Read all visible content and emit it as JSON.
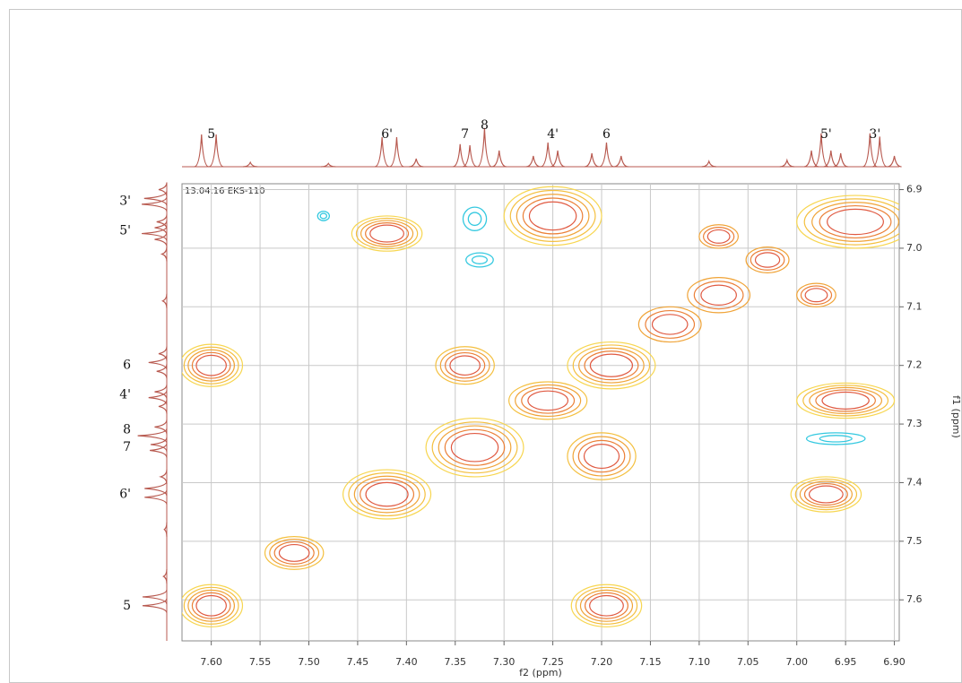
{
  "chart_data": {
    "type": "nmr2d",
    "title": "13.04.16 EKS-110",
    "xlabel": "f2 (ppm)",
    "ylabel": "f1 (ppm)",
    "xlim": [
      7.63,
      6.895
    ],
    "ylim": [
      6.89,
      7.67
    ],
    "xticks": [
      {
        "value": 7.6,
        "label": "7.60"
      },
      7.55,
      {
        "value": 7.5,
        "label": "7.50"
      },
      7.45,
      {
        "value": 7.4,
        "label": "7.40"
      },
      7.35,
      {
        "value": 7.3,
        "label": "7.30"
      },
      7.25,
      {
        "value": 7.2,
        "label": "7.20"
      },
      7.15,
      {
        "value": 7.1,
        "label": "7.10"
      },
      7.05,
      {
        "value": 7,
        "label": "7.00"
      },
      6.95,
      {
        "value": 6.9,
        "label": "6.90"
      }
    ],
    "yticks": [
      6.9,
      {
        "value": 7,
        "label": "7.0"
      },
      7.1,
      7.2,
      7.3,
      7.4,
      7.5,
      7.6
    ],
    "grid": true,
    "grid_color": "#c9c9c9",
    "level_colors": [
      "#f7d650",
      "#f4c040",
      "#f0a438",
      "#eb8038",
      "#e05a42"
    ],
    "negative_color": "#35c9e0",
    "trace_color": "#b85a50",
    "peaks": [
      {
        "x": 7.6,
        "y": 7.61,
        "w": 0.032,
        "h": 0.036,
        "levels": 5
      },
      {
        "x": 7.6,
        "y": 7.2,
        "w": 0.032,
        "h": 0.036,
        "levels": 5
      },
      {
        "x": 7.42,
        "y": 6.975,
        "w": 0.036,
        "h": 0.03,
        "levels": 5
      },
      {
        "x": 7.42,
        "y": 7.42,
        "w": 0.045,
        "h": 0.042,
        "levels": 5
      },
      {
        "x": 7.515,
        "y": 7.52,
        "w": 0.03,
        "h": 0.028,
        "levels": 4
      },
      {
        "x": 7.34,
        "y": 7.2,
        "w": 0.03,
        "h": 0.032,
        "levels": 4
      },
      {
        "x": 7.33,
        "y": 7.34,
        "w": 0.05,
        "h": 0.05,
        "levels": 5
      },
      {
        "x": 7.25,
        "y": 6.945,
        "w": 0.05,
        "h": 0.05,
        "levels": 5
      },
      {
        "x": 7.255,
        "y": 7.26,
        "w": 0.04,
        "h": 0.032,
        "levels": 4
      },
      {
        "x": 7.19,
        "y": 7.2,
        "w": 0.045,
        "h": 0.04,
        "levels": 5
      },
      {
        "x": 7.195,
        "y": 7.61,
        "w": 0.036,
        "h": 0.036,
        "levels": 5
      },
      {
        "x": 7.2,
        "y": 7.355,
        "w": 0.035,
        "h": 0.04,
        "levels": 4
      },
      {
        "x": 7.13,
        "y": 7.13,
        "w": 0.032,
        "h": 0.03,
        "levels": 3
      },
      {
        "x": 7.08,
        "y": 7.08,
        "w": 0.032,
        "h": 0.03,
        "levels": 3
      },
      {
        "x": 7.03,
        "y": 7.02,
        "w": 0.022,
        "h": 0.022,
        "levels": 3
      },
      {
        "x": 6.94,
        "y": 6.955,
        "w": 0.06,
        "h": 0.045,
        "levels": 5
      },
      {
        "x": 6.97,
        "y": 7.42,
        "w": 0.036,
        "h": 0.03,
        "levels": 5
      },
      {
        "x": 6.95,
        "y": 7.26,
        "w": 0.05,
        "h": 0.03,
        "levels": 5
      },
      {
        "x": 6.98,
        "y": 7.08,
        "w": 0.02,
        "h": 0.02,
        "levels": 3
      },
      {
        "x": 7.08,
        "y": 6.98,
        "w": 0.02,
        "h": 0.02,
        "levels": 3
      }
    ],
    "negative_peaks": [
      {
        "x": 7.33,
        "y": 6.95,
        "w": 0.012,
        "h": 0.02
      },
      {
        "x": 7.325,
        "y": 7.02,
        "w": 0.014,
        "h": 0.012
      },
      {
        "x": 6.96,
        "y": 7.325,
        "w": 0.03,
        "h": 0.01
      },
      {
        "x": 7.485,
        "y": 6.945,
        "w": 0.006,
        "h": 0.008
      }
    ],
    "projection": {
      "ppm": [
        7.61,
        7.595,
        7.56,
        7.48,
        7.425,
        7.41,
        7.39,
        7.345,
        7.335,
        7.32,
        7.305,
        7.27,
        7.255,
        7.245,
        7.21,
        7.195,
        7.18,
        7.09,
        7.01,
        6.985,
        6.975,
        6.965,
        6.955,
        6.925,
        6.915,
        6.9
      ],
      "intensity": [
        0.6,
        0.6,
        0.08,
        0.06,
        0.55,
        0.55,
        0.15,
        0.42,
        0.4,
        0.72,
        0.3,
        0.2,
        0.45,
        0.3,
        0.25,
        0.45,
        0.2,
        0.1,
        0.12,
        0.3,
        0.62,
        0.3,
        0.25,
        0.62,
        0.56,
        0.2
      ]
    },
    "top_labels": [
      {
        "text": "5",
        "ppm": 7.6
      },
      {
        "text": "6'",
        "ppm": 7.42
      },
      {
        "text": "7",
        "ppm": 7.34
      },
      {
        "text": "8",
        "ppm": 7.32
      },
      {
        "text": "4'",
        "ppm": 7.25
      },
      {
        "text": "6",
        "ppm": 7.195
      },
      {
        "text": "5'",
        "ppm": 6.97
      },
      {
        "text": "3'",
        "ppm": 6.92
      }
    ],
    "left_labels": [
      {
        "text": "3'",
        "ppm": 6.92
      },
      {
        "text": "5'",
        "ppm": 6.97
      },
      {
        "text": "6",
        "ppm": 7.2
      },
      {
        "text": "4'",
        "ppm": 7.25
      },
      {
        "text": "8",
        "ppm": 7.31
      },
      {
        "text": "7",
        "ppm": 7.34
      },
      {
        "text": "6'",
        "ppm": 7.42
      },
      {
        "text": "5",
        "ppm": 7.61
      }
    ]
  }
}
